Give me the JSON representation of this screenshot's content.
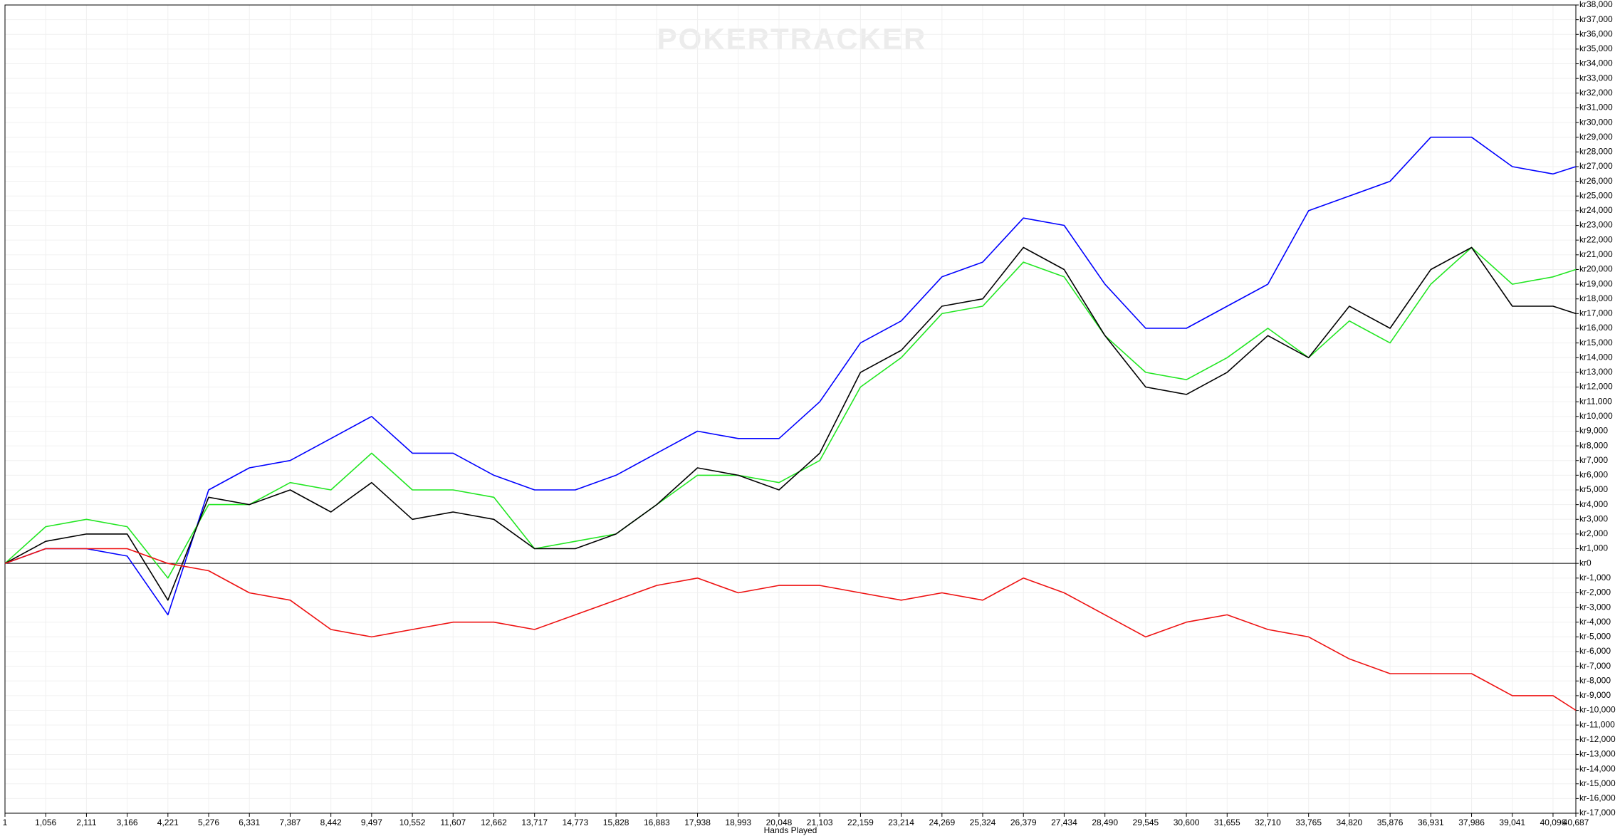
{
  "chart_data": {
    "type": "line",
    "watermark": "POKERTRACKER",
    "x_label": "Hands Played",
    "grid": true,
    "x": [
      1,
      1056,
      2111,
      3166,
      4221,
      5276,
      6331,
      7387,
      8442,
      9497,
      10552,
      11607,
      12662,
      13717,
      14773,
      15828,
      16883,
      17938,
      18993,
      20048,
      21103,
      22159,
      23214,
      24269,
      25324,
      26379,
      27434,
      28490,
      29545,
      30600,
      31655,
      32710,
      33765,
      34820,
      35876,
      36931,
      37986,
      39041,
      40096,
      40687
    ],
    "xlim": [
      1,
      40687
    ],
    "xticks": [
      1,
      {
        "value": 1056,
        "label": "1,056"
      },
      {
        "value": 2111,
        "label": "2,111"
      },
      {
        "value": 3166,
        "label": "3,166"
      },
      {
        "value": 4221,
        "label": "4,221"
      },
      {
        "value": 5276,
        "label": "5,276"
      },
      {
        "value": 6331,
        "label": "6,331"
      },
      {
        "value": 7387,
        "label": "7,387"
      },
      {
        "value": 8442,
        "label": "8,442"
      },
      {
        "value": 9497,
        "label": "9,497"
      },
      {
        "value": 10552,
        "label": "10,552"
      },
      {
        "value": 11607,
        "label": "11,607"
      },
      {
        "value": 12662,
        "label": "12,662"
      },
      {
        "value": 13717,
        "label": "13,717"
      },
      {
        "value": 14773,
        "label": "14,773"
      },
      {
        "value": 15828,
        "label": "15,828"
      },
      {
        "value": 16883,
        "label": "16,883"
      },
      {
        "value": 17938,
        "label": "17,938"
      },
      {
        "value": 18993,
        "label": "18,993"
      },
      {
        "value": 20048,
        "label": "20,048"
      },
      {
        "value": 21103,
        "label": "21,103"
      },
      {
        "value": 22159,
        "label": "22,159"
      },
      {
        "value": 23214,
        "label": "23,214"
      },
      {
        "value": 24269,
        "label": "24,269"
      },
      {
        "value": 25324,
        "label": "25,324"
      },
      {
        "value": 26379,
        "label": "26,379"
      },
      {
        "value": 27434,
        "label": "27,434"
      },
      {
        "value": 28490,
        "label": "28,490"
      },
      {
        "value": 29545,
        "label": "29,545"
      },
      {
        "value": 30600,
        "label": "30,600"
      },
      {
        "value": 31655,
        "label": "31,655"
      },
      {
        "value": 32710,
        "label": "32,710"
      },
      {
        "value": 33765,
        "label": "33,765"
      },
      {
        "value": 34820,
        "label": "34,820"
      },
      {
        "value": 35876,
        "label": "35,876"
      },
      {
        "value": 36931,
        "label": "36,931"
      },
      {
        "value": 37986,
        "label": "37,986"
      },
      {
        "value": 39041,
        "label": "39,041"
      },
      {
        "value": 40096,
        "label": "40,096"
      },
      {
        "value": 40687,
        "label": "40,687"
      }
    ],
    "ylim": [
      -17000,
      38000
    ],
    "yticks": [
      {
        "value": 38000,
        "label": "kr38,000"
      },
      {
        "value": 37000,
        "label": "kr37,000"
      },
      {
        "value": 36000,
        "label": "kr36,000"
      },
      {
        "value": 35000,
        "label": "kr35,000"
      },
      {
        "value": 34000,
        "label": "kr34,000"
      },
      {
        "value": 33000,
        "label": "kr33,000"
      },
      {
        "value": 32000,
        "label": "kr32,000"
      },
      {
        "value": 31000,
        "label": "kr31,000"
      },
      {
        "value": 30000,
        "label": "kr30,000"
      },
      {
        "value": 29000,
        "label": "kr29,000"
      },
      {
        "value": 28000,
        "label": "kr28,000"
      },
      {
        "value": 27000,
        "label": "kr27,000"
      },
      {
        "value": 26000,
        "label": "kr26,000"
      },
      {
        "value": 25000,
        "label": "kr25,000"
      },
      {
        "value": 24000,
        "label": "kr24,000"
      },
      {
        "value": 23000,
        "label": "kr23,000"
      },
      {
        "value": 22000,
        "label": "kr22,000"
      },
      {
        "value": 21000,
        "label": "kr21,000"
      },
      {
        "value": 20000,
        "label": "kr20,000"
      },
      {
        "value": 19000,
        "label": "kr19,000"
      },
      {
        "value": 18000,
        "label": "kr18,000"
      },
      {
        "value": 17000,
        "label": "kr17,000"
      },
      {
        "value": 16000,
        "label": "kr16,000"
      },
      {
        "value": 15000,
        "label": "kr15,000"
      },
      {
        "value": 14000,
        "label": "kr14,000"
      },
      {
        "value": 13000,
        "label": "kr13,000"
      },
      {
        "value": 12000,
        "label": "kr12,000"
      },
      {
        "value": 11000,
        "label": "kr11,000"
      },
      {
        "value": 10000,
        "label": "kr10,000"
      },
      {
        "value": 9000,
        "label": "kr9,000"
      },
      {
        "value": 8000,
        "label": "kr8,000"
      },
      {
        "value": 7000,
        "label": "kr7,000"
      },
      {
        "value": 6000,
        "label": "kr6,000"
      },
      {
        "value": 5000,
        "label": "kr5,000"
      },
      {
        "value": 4000,
        "label": "kr4,000"
      },
      {
        "value": 3000,
        "label": "kr3,000"
      },
      {
        "value": 2000,
        "label": "kr2,000"
      },
      {
        "value": 1000,
        "label": "kr1,000"
      },
      {
        "value": 0,
        "label": "kr0"
      },
      {
        "value": -1000,
        "label": "kr-1,000"
      },
      {
        "value": -2000,
        "label": "kr-2,000"
      },
      {
        "value": -3000,
        "label": "kr-3,000"
      },
      {
        "value": -4000,
        "label": "kr-4,000"
      },
      {
        "value": -5000,
        "label": "kr-5,000"
      },
      {
        "value": -6000,
        "label": "kr-6,000"
      },
      {
        "value": -7000,
        "label": "kr-7,000"
      },
      {
        "value": -8000,
        "label": "kr-8,000"
      },
      {
        "value": -9000,
        "label": "kr-9,000"
      },
      {
        "value": -10000,
        "label": "kr-10,000"
      },
      {
        "value": -11000,
        "label": "kr-11,000"
      },
      {
        "value": -12000,
        "label": "kr-12,000"
      },
      {
        "value": -13000,
        "label": "kr-13,000"
      },
      {
        "value": -14000,
        "label": "kr-14,000"
      },
      {
        "value": -15000,
        "label": "kr-15,000"
      },
      {
        "value": -16000,
        "label": "kr-16,000"
      },
      {
        "value": -17000,
        "label": "kr-17,000"
      }
    ],
    "series": [
      {
        "color": "#0000ff",
        "values": [
          0,
          1000,
          1000,
          500,
          -3500,
          5000,
          6500,
          7000,
          8500,
          10000,
          7500,
          7500,
          6000,
          5000,
          5000,
          6000,
          7500,
          9000,
          8500,
          8500,
          11000,
          15000,
          16500,
          19500,
          20500,
          23500,
          23000,
          19000,
          16000,
          16000,
          17500,
          19000,
          24000,
          25000,
          26000,
          29000,
          29000,
          27000,
          26500,
          27000
        ]
      },
      {
        "color": "#22e622",
        "values": [
          0,
          2500,
          3000,
          2500,
          -1000,
          4000,
          4000,
          5500,
          5000,
          7500,
          5000,
          5000,
          4500,
          1000,
          1500,
          2000,
          4000,
          6000,
          6000,
          5500,
          7000,
          12000,
          14000,
          17000,
          17500,
          20500,
          19500,
          15500,
          13000,
          12500,
          14000,
          16000,
          14000,
          16500,
          15000,
          19000,
          21500,
          19000,
          19500,
          20000
        ]
      },
      {
        "color": "#000000",
        "values": [
          0,
          1500,
          2000,
          2000,
          -2500,
          4500,
          4000,
          5000,
          3500,
          5500,
          3000,
          3500,
          3000,
          1000,
          1000,
          2000,
          4000,
          6500,
          6000,
          5000,
          7500,
          13000,
          14500,
          17500,
          18000,
          21500,
          20000,
          15500,
          12000,
          11500,
          13000,
          15500,
          14000,
          17500,
          16000,
          20000,
          21500,
          17500,
          17500,
          17000
        ]
      },
      {
        "color": "#ee1111",
        "values": [
          0,
          1000,
          1000,
          1000,
          0,
          -500,
          -2000,
          -2500,
          -4500,
          -5000,
          -4500,
          -4000,
          -4000,
          -4500,
          -3500,
          -2500,
          -1500,
          -1000,
          -2000,
          -1500,
          -1500,
          -2000,
          -2500,
          -2000,
          -2500,
          -1000,
          -2000,
          -3500,
          -5000,
          -4000,
          -3500,
          -4500,
          -5000,
          -6500,
          -7500,
          -7500,
          -7500,
          -9000,
          -9000,
          -10000
        ]
      }
    ]
  }
}
